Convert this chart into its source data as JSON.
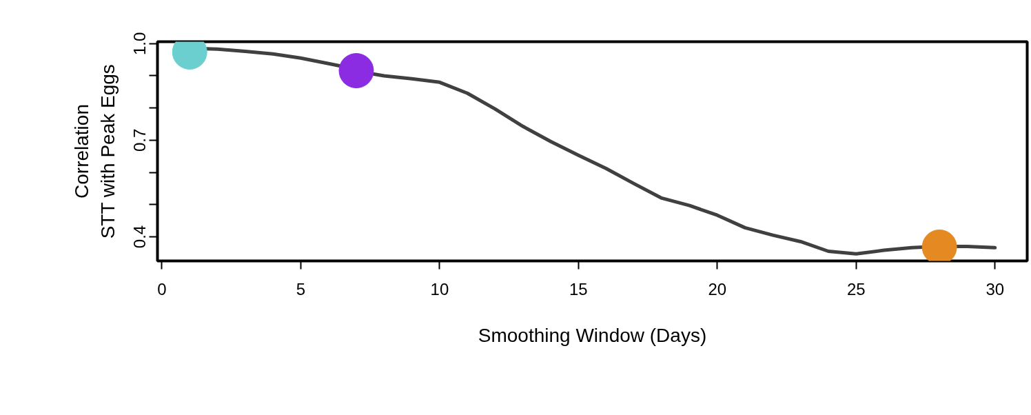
{
  "chart_data": {
    "type": "line",
    "xlabel": "Smoothing Window (Days)",
    "ylabel": "Correlation\nSTT with Peak Eggs",
    "xlim": [
      -0.16,
      31.16
    ],
    "ylim": [
      0.325,
      1.006
    ],
    "xticks": [
      0,
      5,
      10,
      15,
      20,
      25,
      30
    ],
    "yticks": [
      {
        "value": 0.4,
        "label": "0.4"
      },
      {
        "value": 0.5,
        "label": null
      },
      {
        "value": 0.6,
        "label": null
      },
      {
        "value": 0.7,
        "label": "0.7"
      },
      {
        "value": 0.8,
        "label": null
      },
      {
        "value": 0.9,
        "label": null
      },
      {
        "value": 1.0,
        "label": "1.0"
      }
    ],
    "grid": false,
    "line_style": "solid",
    "series": [
      {
        "color": "#404040",
        "x": [
          1.6,
          2,
          3,
          4,
          5,
          6,
          6.4,
          7.6,
          8,
          9,
          10,
          11,
          12,
          13,
          14,
          15,
          16,
          17,
          18,
          19,
          20,
          21,
          22,
          23,
          24,
          25,
          26,
          27,
          27.4,
          28.6,
          29,
          30
        ],
        "values": [
          0.984,
          0.983,
          0.976,
          0.968,
          0.955,
          0.938,
          0.931,
          0.906,
          0.9,
          0.891,
          0.88,
          0.846,
          0.797,
          0.743,
          0.696,
          0.653,
          0.612,
          0.565,
          0.52,
          0.497,
          0.467,
          0.428,
          0.405,
          0.385,
          0.355,
          0.347,
          0.358,
          0.366,
          0.368,
          0.37,
          0.37,
          0.366
        ]
      },
      {
        "type": "scatter",
        "marker": "circle",
        "x": [
          1,
          7,
          28
        ],
        "values": [
          0.974,
          0.916,
          0.368
        ],
        "colors": [
          "#6ccfcf",
          "#8b2be2",
          "#e58a22"
        ]
      }
    ]
  }
}
